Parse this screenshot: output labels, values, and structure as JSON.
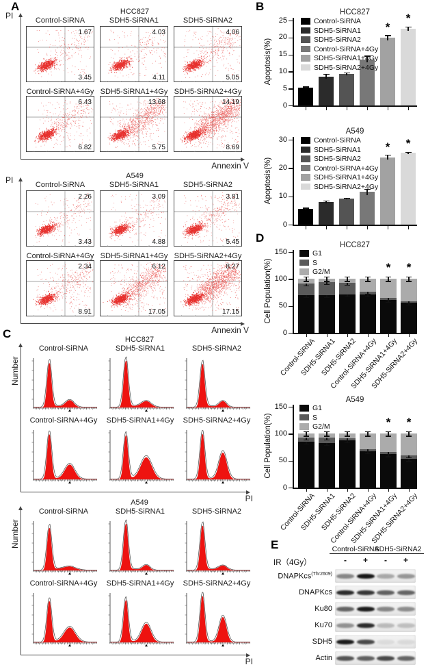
{
  "panel_labels": {
    "a": "A",
    "b": "B",
    "c": "C",
    "d": "D",
    "e": "E"
  },
  "treatments": [
    "Control-SiRNA",
    "SDH5-SiRNA1",
    "SDH5-SiRNA2",
    "Control-SiRNA+4Gy",
    "SDH5-SiRNA1+4Gy",
    "SDH5-SiRNA2+4Gy"
  ],
  "colors": {
    "scatter_dot": "#e41b17",
    "hist_fill": "#ee1310",
    "axis": "#333333",
    "bar_grays": [
      "#000000",
      "#2b2b2b",
      "#545454",
      "#787878",
      "#a2a2a2",
      "#d9d9d9"
    ],
    "g1": "#0a0a0a",
    "s": "#5a5a5a",
    "g2m": "#ababab"
  },
  "flow": {
    "y_axis_label": "PI",
    "x_axis_label": "Annexin V",
    "blocks": [
      {
        "cell_line": "HCC827",
        "plots": [
          {
            "title": "Control-SiRNA",
            "upper_right": "1.67",
            "lower_right": "3.45",
            "spread": "small"
          },
          {
            "title": "SDH5-SiRNA1",
            "upper_right": "4.03",
            "lower_right": "4.11",
            "spread": "small"
          },
          {
            "title": "SDH5-SiRNA2",
            "upper_right": "4.06",
            "lower_right": "5.05",
            "spread": "medium"
          },
          {
            "title": "Control-SiRNA+4Gy",
            "upper_right": "6.43",
            "lower_right": "6.82",
            "spread": "medium"
          },
          {
            "title": "SDH5-SiRNA1+4Gy",
            "upper_right": "13.68",
            "lower_right": "5.75",
            "spread": "large"
          },
          {
            "title": "SDH5-SiRNA2+4Gy",
            "upper_right": "14.19",
            "lower_right": "8.69",
            "spread": "xlarge"
          }
        ]
      },
      {
        "cell_line": "A549",
        "plots": [
          {
            "title": "Control-SiRNA",
            "upper_right": "2.26",
            "lower_right": "3.43",
            "spread": "small"
          },
          {
            "title": "SDH5-SiRNA1",
            "upper_right": "3.09",
            "lower_right": "4.88",
            "spread": "small"
          },
          {
            "title": "SDH5-SiRNA2",
            "upper_right": "3.81",
            "lower_right": "5.45",
            "spread": "medium"
          },
          {
            "title": "Control-SiRNA+4Gy",
            "upper_right": "2.34",
            "lower_right": "8.91",
            "spread": "medium"
          },
          {
            "title": "SDH5-SiRNA1+4Gy",
            "upper_right": "6.12",
            "lower_right": "17.05",
            "spread": "large"
          },
          {
            "title": "SDH5-SiRNA2+4Gy",
            "upper_right": "8.27",
            "lower_right": "17.15",
            "spread": "xlarge"
          }
        ]
      }
    ]
  },
  "cycle": {
    "y_axis_label": "Number",
    "x_axis_label": "PI",
    "blocks": [
      {
        "cell_line": "HCC827",
        "plots": [
          {
            "title": "Control-SiRNA",
            "g1_peak": 0.92,
            "g2_peak": 0.14,
            "g2_width": 6
          },
          {
            "title": "SDH5-SiRNA1",
            "g1_peak": 0.97,
            "g2_peak": 0.12,
            "g2_width": 7
          },
          {
            "title": "SDH5-SiRNA2",
            "g1_peak": 0.9,
            "g2_peak": 0.12,
            "g2_width": 5
          },
          {
            "title": "Control-SiRNA+4Gy",
            "g1_peak": 0.94,
            "g2_peak": 0.3,
            "g2_width": 7
          },
          {
            "title": "SDH5-SiRNA1+4Gy",
            "g1_peak": 0.92,
            "g2_peak": 0.45,
            "g2_width": 8
          },
          {
            "title": "SDH5-SiRNA2+4Gy",
            "g1_peak": 0.95,
            "g2_peak": 0.55,
            "g2_width": 5.5
          }
        ]
      },
      {
        "cell_line": "A549",
        "plots": [
          {
            "title": "Control-SiRNA",
            "g1_peak": 0.88,
            "g2_peak": 0.07,
            "g2_width": 9
          },
          {
            "title": "SDH5-SiRNA1",
            "g1_peak": 0.97,
            "g2_peak": 0.1,
            "g2_width": 5
          },
          {
            "title": "SDH5-SiRNA2",
            "g1_peak": 0.93,
            "g2_peak": 0.09,
            "g2_width": 6
          },
          {
            "title": "Control-SiRNA+4Gy",
            "g1_peak": 0.86,
            "g2_peak": 0.3,
            "g2_width": 8
          },
          {
            "title": "SDH5-SiRNA1+4Gy",
            "g1_peak": 0.88,
            "g2_peak": 0.38,
            "g2_width": 6.5
          },
          {
            "title": "SDH5-SiRNA2+4Gy",
            "g1_peak": 0.97,
            "g2_peak": 0.52,
            "g2_width": 5
          }
        ]
      }
    ]
  },
  "chart_data": [
    {
      "id": "apoptosis_hcc827",
      "type": "bar",
      "title": "HCC827",
      "ylabel": "Apoptosis(%)",
      "ylim": [
        0,
        25
      ],
      "yticks": [
        0,
        5,
        10,
        15,
        20,
        25
      ],
      "categories": [
        "Control-SiRNA",
        "SDH5-SiRNA1",
        "SDH5-SiRNA2",
        "Control-SiRNA+4Gy",
        "SDH5-SiRNA1+4Gy",
        "SDH5-SiRNA2+4Gy"
      ],
      "values": [
        5.2,
        8.5,
        9.3,
        13.6,
        19.9,
        22.5
      ],
      "errors": [
        0.25,
        0.7,
        0.35,
        0.9,
        0.7,
        0.6
      ],
      "significant": [
        false,
        false,
        false,
        false,
        true,
        true
      ],
      "sig_marker": "*",
      "legend_position": "top-left",
      "grid": false,
      "legend": [
        "Control-SiRNA",
        "SDH5-SiRNA1",
        "SDH5-SiRNA2",
        "Control-SiRNA+4Gy",
        "SDH5-SiRNA1+4Gy",
        "SDH5-SiRNA2+4Gy"
      ]
    },
    {
      "id": "apoptosis_a549",
      "type": "bar",
      "title": "A549",
      "ylabel": "Apoptosis(%)",
      "ylim": [
        0,
        30
      ],
      "yticks": [
        0,
        10,
        20,
        30
      ],
      "categories": [
        "Control-SiRNA",
        "SDH5-SiRNA1",
        "SDH5-SiRNA2",
        "Control-SiRNA+4Gy",
        "SDH5-SiRNA1+4Gy",
        "SDH5-SiRNA2+4Gy"
      ],
      "values": [
        5.5,
        8.0,
        9.1,
        11.5,
        23.7,
        25.3
      ],
      "errors": [
        0.3,
        0.4,
        0.25,
        1.0,
        0.8,
        0.3
      ],
      "significant": [
        false,
        false,
        false,
        false,
        true,
        true
      ],
      "sig_marker": "*",
      "legend_position": "top-left",
      "grid": false,
      "legend": [
        "Control-SiRNA",
        "SDH5-SiRNA1",
        "SDH5-SiRNA2",
        "Control-SiRNA+4Gy",
        "SDH5-SiRNA1+4Gy",
        "SDH5-SiRNA2+4Gy"
      ]
    },
    {
      "id": "cellcycle_hcc827",
      "type": "stacked_bar",
      "title": "HCC827",
      "ylabel": "Cell Population(%)",
      "ylim": [
        0,
        150
      ],
      "yticks": [
        0,
        50,
        100,
        150
      ],
      "categories": [
        "Control-SiRNA",
        "SDH5-SiRNA1",
        "SDH5-SiRNA2",
        "Control-SiRNA+4Gy",
        "SDH5-SiRNA1+4Gy",
        "SDH5-SiRNA2+4Gy"
      ],
      "series": [
        {
          "name": "G1",
          "values": [
            70,
            70,
            71,
            71,
            61,
            56
          ]
        },
        {
          "name": "S",
          "values": [
            22,
            24,
            22,
            5,
            4,
            3
          ]
        },
        {
          "name": "G2/M",
          "values": [
            8,
            6,
            7,
            24,
            35,
            41
          ]
        }
      ],
      "errors": 2,
      "significant": [
        false,
        false,
        false,
        false,
        true,
        true
      ],
      "sig_marker": "*",
      "legend_position": "top-left",
      "grid": false
    },
    {
      "id": "cellcycle_a549",
      "type": "stacked_bar",
      "title": "A549",
      "ylabel": "Cell Population(%)",
      "ylim": [
        0,
        150
      ],
      "yticks": [
        0,
        50,
        100,
        150
      ],
      "categories": [
        "Control-SiRNA",
        "SDH5-SiRNA1",
        "SDH5-SiRNA2",
        "Control-SiRNA+4Gy",
        "SDH5-SiRNA1+4Gy",
        "SDH5-SiRNA2+4Gy"
      ],
      "series": [
        {
          "name": "G1",
          "values": [
            85,
            83,
            88,
            68,
            62,
            53
          ]
        },
        {
          "name": "S",
          "values": [
            8,
            10,
            4,
            3,
            4,
            7
          ]
        },
        {
          "name": "G2/M",
          "values": [
            7,
            7,
            8,
            29,
            34,
            40
          ]
        }
      ],
      "errors": 2,
      "significant": [
        false,
        false,
        false,
        false,
        true,
        true
      ],
      "sig_marker": "*",
      "legend_position": "top-left",
      "grid": false
    }
  ],
  "western": {
    "ir_label": "IR（4Gy）",
    "groups": [
      "Control-SiRNA",
      "SDH5-SiRNA2"
    ],
    "lane_signs": [
      "-",
      "+",
      "-",
      "+"
    ],
    "rows": [
      {
        "label": "DNAPKcs",
        "superscript": "(Thr2609)",
        "bands": [
          0.45,
          0.95,
          0.3,
          0.38
        ]
      },
      {
        "label": "DNAPKcs",
        "superscript": "",
        "bands": [
          0.85,
          0.8,
          0.62,
          0.6
        ]
      },
      {
        "label": "Ku80",
        "superscript": "",
        "bands": [
          0.6,
          0.92,
          0.45,
          0.42
        ]
      },
      {
        "label": "Ku70",
        "superscript": "",
        "bands": [
          0.4,
          0.85,
          0.22,
          0.2
        ]
      },
      {
        "label": "SDH5",
        "superscript": "",
        "bands": [
          0.92,
          0.72,
          0.07,
          0.08
        ]
      },
      {
        "label": "Actin",
        "superscript": "",
        "bands": [
          0.68,
          0.62,
          0.72,
          0.6
        ]
      }
    ]
  }
}
